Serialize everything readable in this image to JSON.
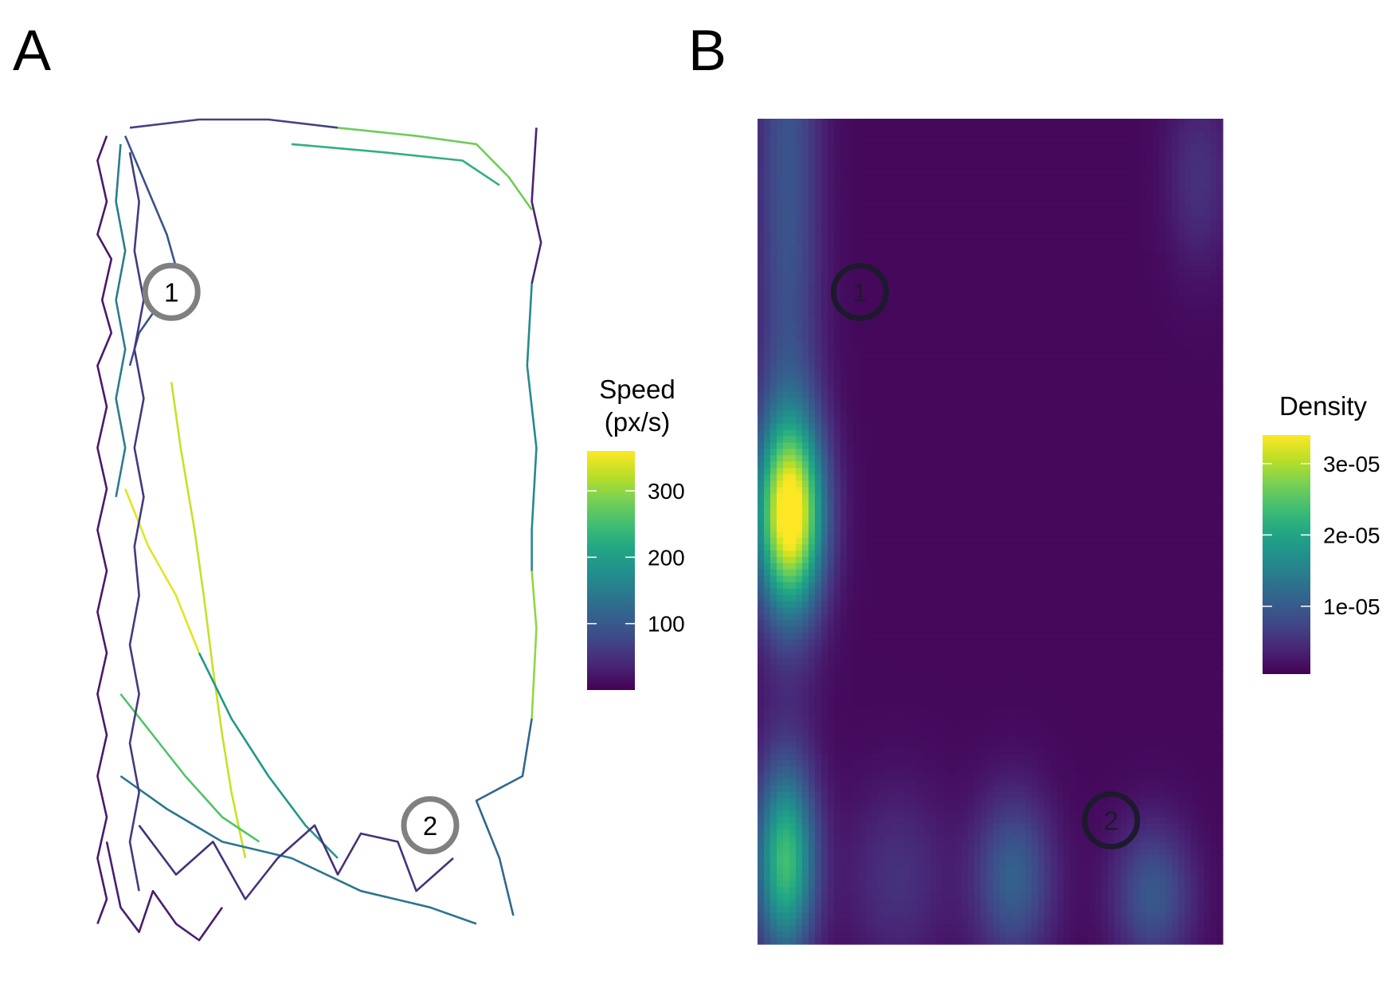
{
  "panels": {
    "a_label": "A",
    "b_label": "B"
  },
  "chart_data": [
    {
      "type": "line",
      "panel": "A",
      "title": "",
      "color_scale": "viridis",
      "legend": {
        "title_line1": "Speed",
        "title_line2": "(px/s)",
        "ticks": [
          "100",
          "200",
          "300"
        ],
        "tick_values": [
          100,
          200,
          300
        ],
        "range": [
          0,
          360
        ],
        "placement": "right"
      },
      "markers": [
        {
          "label": "1",
          "x": 0.19,
          "y": 0.79
        },
        {
          "label": "2",
          "x": 0.75,
          "y": 0.14
        }
      ],
      "segments": [
        {
          "speed": 25,
          "points": [
            [
              0.05,
              0.98
            ],
            [
              0.03,
              0.95
            ],
            [
              0.05,
              0.9
            ],
            [
              0.03,
              0.86
            ],
            [
              0.06,
              0.83
            ],
            [
              0.04,
              0.78
            ],
            [
              0.06,
              0.74
            ],
            [
              0.03,
              0.7
            ],
            [
              0.05,
              0.65
            ],
            [
              0.03,
              0.6
            ],
            [
              0.05,
              0.55
            ],
            [
              0.03,
              0.5
            ],
            [
              0.05,
              0.45
            ],
            [
              0.03,
              0.4
            ],
            [
              0.05,
              0.35
            ],
            [
              0.03,
              0.3
            ],
            [
              0.05,
              0.25
            ],
            [
              0.03,
              0.2
            ],
            [
              0.05,
              0.15
            ],
            [
              0.03,
              0.1
            ],
            [
              0.05,
              0.05
            ],
            [
              0.03,
              0.02
            ]
          ]
        },
        {
          "speed": 90,
          "points": [
            [
              0.09,
              0.98
            ],
            [
              0.12,
              0.94
            ],
            [
              0.15,
              0.9
            ],
            [
              0.18,
              0.86
            ],
            [
              0.2,
              0.82
            ],
            [
              0.17,
              0.78
            ],
            [
              0.12,
              0.74
            ],
            [
              0.1,
              0.7
            ]
          ]
        },
        {
          "speed": 150,
          "points": [
            [
              0.08,
              0.97
            ],
            [
              0.07,
              0.9
            ],
            [
              0.09,
              0.84
            ],
            [
              0.07,
              0.78
            ],
            [
              0.09,
              0.72
            ],
            [
              0.07,
              0.66
            ],
            [
              0.09,
              0.6
            ],
            [
              0.07,
              0.54
            ]
          ]
        },
        {
          "speed": 70,
          "points": [
            [
              0.1,
              0.99
            ],
            [
              0.25,
              1.0
            ],
            [
              0.4,
              1.0
            ],
            [
              0.55,
              0.99
            ]
          ]
        },
        {
          "speed": 280,
          "points": [
            [
              0.55,
              0.99
            ],
            [
              0.72,
              0.98
            ],
            [
              0.85,
              0.97
            ],
            [
              0.92,
              0.93
            ],
            [
              0.97,
              0.89
            ]
          ]
        },
        {
          "speed": 230,
          "points": [
            [
              0.45,
              0.97
            ],
            [
              0.65,
              0.96
            ],
            [
              0.82,
              0.95
            ],
            [
              0.9,
              0.92
            ]
          ]
        },
        {
          "speed": 35,
          "points": [
            [
              0.98,
              0.99
            ],
            [
              0.97,
              0.9
            ],
            [
              0.99,
              0.85
            ],
            [
              0.97,
              0.8
            ]
          ]
        },
        {
          "speed": 170,
          "points": [
            [
              0.97,
              0.8
            ],
            [
              0.96,
              0.7
            ],
            [
              0.98,
              0.6
            ],
            [
              0.97,
              0.5
            ],
            [
              0.97,
              0.45
            ]
          ]
        },
        {
          "speed": 300,
          "points": [
            [
              0.97,
              0.45
            ],
            [
              0.98,
              0.38
            ],
            [
              0.97,
              0.27
            ]
          ]
        },
        {
          "speed": 120,
          "points": [
            [
              0.97,
              0.27
            ],
            [
              0.95,
              0.2
            ],
            [
              0.85,
              0.17
            ],
            [
              0.9,
              0.1
            ],
            [
              0.93,
              0.03
            ]
          ]
        },
        {
          "speed": 330,
          "points": [
            [
              0.19,
              0.68
            ],
            [
              0.21,
              0.6
            ],
            [
              0.24,
              0.5
            ],
            [
              0.26,
              0.42
            ],
            [
              0.28,
              0.33
            ],
            [
              0.3,
              0.25
            ],
            [
              0.32,
              0.18
            ],
            [
              0.35,
              0.1
            ]
          ]
        },
        {
          "speed": 345,
          "points": [
            [
              0.09,
              0.55
            ],
            [
              0.14,
              0.48
            ],
            [
              0.2,
              0.42
            ],
            [
              0.25,
              0.35
            ]
          ]
        },
        {
          "speed": 190,
          "points": [
            [
              0.25,
              0.35
            ],
            [
              0.32,
              0.27
            ],
            [
              0.4,
              0.2
            ],
            [
              0.48,
              0.14
            ],
            [
              0.55,
              0.1
            ]
          ]
        },
        {
          "speed": 260,
          "points": [
            [
              0.08,
              0.3
            ],
            [
              0.15,
              0.25
            ],
            [
              0.22,
              0.2
            ],
            [
              0.3,
              0.15
            ],
            [
              0.38,
              0.12
            ]
          ]
        },
        {
          "speed": 140,
          "points": [
            [
              0.08,
              0.2
            ],
            [
              0.18,
              0.16
            ],
            [
              0.3,
              0.12
            ],
            [
              0.45,
              0.1
            ],
            [
              0.6,
              0.06
            ],
            [
              0.75,
              0.04
            ],
            [
              0.85,
              0.02
            ]
          ]
        },
        {
          "speed": 50,
          "points": [
            [
              0.12,
              0.14
            ],
            [
              0.2,
              0.08
            ],
            [
              0.28,
              0.12
            ],
            [
              0.35,
              0.05
            ],
            [
              0.42,
              0.1
            ],
            [
              0.5,
              0.14
            ],
            [
              0.55,
              0.08
            ],
            [
              0.6,
              0.13
            ],
            [
              0.68,
              0.12
            ],
            [
              0.72,
              0.06
            ],
            [
              0.8,
              0.1
            ]
          ]
        },
        {
          "speed": 30,
          "points": [
            [
              0.05,
              0.12
            ],
            [
              0.08,
              0.04
            ],
            [
              0.12,
              0.01
            ],
            [
              0.15,
              0.06
            ],
            [
              0.2,
              0.02
            ],
            [
              0.25,
              0.0
            ],
            [
              0.3,
              0.04
            ]
          ]
        },
        {
          "speed": 60,
          "points": [
            [
              0.1,
              0.96
            ],
            [
              0.12,
              0.9
            ],
            [
              0.11,
              0.84
            ],
            [
              0.13,
              0.78
            ],
            [
              0.11,
              0.72
            ],
            [
              0.13,
              0.66
            ],
            [
              0.11,
              0.6
            ],
            [
              0.13,
              0.54
            ],
            [
              0.11,
              0.48
            ],
            [
              0.12,
              0.42
            ],
            [
              0.1,
              0.36
            ],
            [
              0.12,
              0.3
            ],
            [
              0.1,
              0.24
            ],
            [
              0.12,
              0.18
            ],
            [
              0.1,
              0.12
            ],
            [
              0.12,
              0.06
            ]
          ]
        }
      ]
    },
    {
      "type": "heatmap",
      "panel": "B",
      "title": "",
      "color_scale": "viridis",
      "legend": {
        "title": "Density",
        "ticks": [
          "1e-05",
          "2e-05",
          "3e-05"
        ],
        "tick_values": [
          1e-05,
          2e-05,
          3e-05
        ],
        "range": [
          5e-07,
          3.4e-05
        ],
        "placement": "right"
      },
      "markers": [
        {
          "label": "1",
          "x": 0.22,
          "y": 0.79
        },
        {
          "label": "2",
          "x": 0.76,
          "y": 0.15
        }
      ],
      "kernels": [
        {
          "x": 0.07,
          "y": 0.52,
          "sx": 0.05,
          "sy": 0.08,
          "density": 3.25e-05
        },
        {
          "x": 0.065,
          "y": 0.92,
          "sx": 0.05,
          "sy": 0.35,
          "density": 8e-06
        },
        {
          "x": 0.06,
          "y": 0.1,
          "sx": 0.045,
          "sy": 0.08,
          "density": 2.2e-05
        },
        {
          "x": 0.55,
          "y": 0.08,
          "sx": 0.06,
          "sy": 0.07,
          "density": 9.5e-06
        },
        {
          "x": 0.85,
          "y": 0.06,
          "sx": 0.06,
          "sy": 0.06,
          "density": 8.5e-06
        },
        {
          "x": 0.95,
          "y": 0.93,
          "sx": 0.05,
          "sy": 0.08,
          "density": 4e-06
        },
        {
          "x": 0.3,
          "y": 0.08,
          "sx": 0.08,
          "sy": 0.08,
          "density": 4e-06
        }
      ]
    }
  ]
}
